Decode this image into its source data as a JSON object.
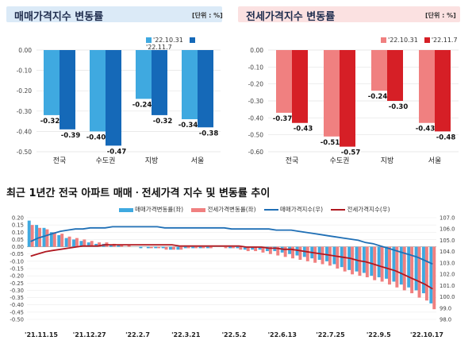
{
  "panels": [
    {
      "title": "매매가격지수 변동률",
      "unit": "[단위 : %]",
      "legend": [
        "'22.10.31",
        "'22.11.7"
      ],
      "colors": [
        "#3fa9e0",
        "#1569b8"
      ],
      "title_bg": "#dbeaf7"
    },
    {
      "title": "전세가격지수 변동률",
      "unit": "[단위 : %]",
      "legend": [
        "'22.10.31",
        "'22.11.7"
      ],
      "colors": [
        "#f08080",
        "#d61f26"
      ],
      "title_bg": "#fbe1e1"
    }
  ],
  "bottom": {
    "title": "최근 1년간 전국 아파트 매매ㆍ전세가격 지수 및 변동률 추이",
    "legend": [
      "매매가격변동률(좌)",
      "전세가격변동률(좌)",
      "매매가격지수(우)",
      "전세가격지수(우)"
    ],
    "colors": [
      "#3fa9e0",
      "#f08080",
      "#1f6fb5",
      "#b01820"
    ]
  },
  "chart_data": [
    {
      "type": "bar",
      "title": "매매가격지수 변동률",
      "categories": [
        "전국",
        "수도권",
        "지방",
        "서울"
      ],
      "series": [
        {
          "name": "'22.10.31",
          "values": [
            -0.32,
            -0.4,
            -0.24,
            -0.34
          ]
        },
        {
          "name": "'22.11.7",
          "values": [
            -0.39,
            -0.47,
            -0.32,
            -0.38
          ]
        }
      ],
      "ylim": [
        -0.5,
        0.0
      ],
      "yticks": [
        "0.00",
        "-0.10",
        "-0.20",
        "-0.30",
        "-0.40",
        "-0.50"
      ],
      "labels": [
        [
          "-0.32",
          "-0.40",
          "-0.24",
          "-0.34"
        ],
        [
          "-0.39",
          "-0.47",
          "-0.32",
          "-0.38"
        ]
      ]
    },
    {
      "type": "bar",
      "title": "전세가격지수 변동률",
      "categories": [
        "전국",
        "수도권",
        "지방",
        "서울"
      ],
      "series": [
        {
          "name": "'22.10.31",
          "values": [
            -0.37,
            -0.51,
            -0.24,
            -0.43
          ]
        },
        {
          "name": "'22.11.7",
          "values": [
            -0.43,
            -0.57,
            -0.3,
            -0.48
          ]
        }
      ],
      "ylim": [
        -0.6,
        0.0
      ],
      "yticks": [
        "0.00",
        "-0.10",
        "-0.20",
        "-0.30",
        "-0.40",
        "-0.50",
        "-0.60"
      ],
      "labels": [
        [
          "-0.37",
          "-0.51",
          "-0.24",
          "-0.43"
        ],
        [
          "-0.43",
          "-0.57",
          "-0.30",
          "-0.48"
        ]
      ]
    },
    {
      "type": "bar+line",
      "title": "최근 1년간 전국 아파트 매매ㆍ전세가격 지수 및 변동률 추이",
      "x_ticks": [
        "'21.11.15",
        "'21.12.27",
        "'22.2.7",
        "'22.3.21",
        "'22.5.2",
        "'22.6.13",
        "'22.7.25",
        "'22.9.5",
        "'22.10.17"
      ],
      "ylim_left": [
        -0.5,
        0.2
      ],
      "yticks_left": [
        "0.20",
        "0.15",
        "0.10",
        "0.05",
        "0.00",
        "-0.05",
        "-0.10",
        "-0.15",
        "-0.20",
        "-0.25",
        "-0.30",
        "-0.35",
        "-0.40",
        "-0.45",
        "-0.50"
      ],
      "ylim_right": [
        98.0,
        107.0
      ],
      "yticks_right": [
        "107.0",
        "106.0",
        "105.0",
        "104.0",
        "103.0",
        "102.0",
        "101.0",
        "100.0",
        "99.0",
        "98.0"
      ],
      "series": [
        {
          "name": "매매가격변동률(좌)",
          "axis": "left",
          "kind": "bar",
          "values": [
            0.18,
            0.15,
            0.13,
            0.1,
            0.08,
            0.06,
            0.05,
            0.04,
            0.03,
            0.02,
            0.02,
            0.01,
            0.01,
            0.0,
            0.0,
            -0.01,
            -0.01,
            -0.01,
            -0.01,
            -0.02,
            -0.02,
            -0.01,
            -0.01,
            -0.01,
            -0.01,
            0.0,
            0.0,
            -0.01,
            -0.01,
            -0.02,
            -0.02,
            -0.02,
            -0.03,
            -0.03,
            -0.04,
            -0.05,
            -0.06,
            -0.07,
            -0.08,
            -0.09,
            -0.1,
            -0.12,
            -0.14,
            -0.16,
            -0.17,
            -0.18,
            -0.2,
            -0.21,
            -0.22,
            -0.24,
            -0.26,
            -0.28,
            -0.3,
            -0.32,
            -0.39
          ]
        },
        {
          "name": "전세가격변동률(좌)",
          "axis": "left",
          "kind": "bar",
          "values": [
            0.15,
            0.13,
            0.12,
            0.1,
            0.09,
            0.07,
            0.06,
            0.05,
            0.04,
            0.03,
            0.03,
            0.02,
            0.01,
            0.01,
            0.0,
            0.0,
            -0.01,
            -0.01,
            -0.02,
            -0.02,
            -0.02,
            -0.01,
            -0.01,
            -0.01,
            -0.01,
            0.0,
            -0.01,
            -0.01,
            -0.02,
            -0.03,
            -0.03,
            -0.04,
            -0.05,
            -0.06,
            -0.07,
            -0.08,
            -0.09,
            -0.1,
            -0.11,
            -0.12,
            -0.13,
            -0.15,
            -0.17,
            -0.19,
            -0.2,
            -0.21,
            -0.23,
            -0.24,
            -0.26,
            -0.28,
            -0.3,
            -0.32,
            -0.35,
            -0.37,
            -0.43
          ]
        },
        {
          "name": "매매가격지수(우)",
          "axis": "right",
          "kind": "line",
          "values": [
            104.9,
            105.2,
            105.4,
            105.6,
            105.8,
            105.9,
            106.0,
            106.0,
            106.1,
            106.1,
            106.1,
            106.2,
            106.2,
            106.2,
            106.2,
            106.2,
            106.2,
            106.2,
            106.1,
            106.1,
            106.1,
            106.1,
            106.1,
            106.1,
            106.1,
            106.1,
            106.1,
            106.0,
            106.0,
            106.0,
            106.0,
            106.0,
            106.0,
            105.9,
            105.9,
            105.9,
            105.8,
            105.7,
            105.6,
            105.5,
            105.4,
            105.3,
            105.2,
            105.1,
            105.0,
            104.8,
            104.7,
            104.5,
            104.3,
            104.1,
            103.9,
            103.7,
            103.5,
            103.2,
            102.9
          ]
        },
        {
          "name": "전세가격지수(우)",
          "axis": "right",
          "kind": "line",
          "values": [
            103.6,
            103.8,
            104.0,
            104.1,
            104.2,
            104.3,
            104.4,
            104.5,
            104.5,
            104.5,
            104.6,
            104.6,
            104.6,
            104.6,
            104.6,
            104.6,
            104.6,
            104.6,
            104.6,
            104.6,
            104.5,
            104.5,
            104.5,
            104.5,
            104.5,
            104.5,
            104.5,
            104.5,
            104.5,
            104.4,
            104.4,
            104.4,
            104.3,
            104.3,
            104.2,
            104.2,
            104.1,
            104.0,
            103.9,
            103.8,
            103.7,
            103.6,
            103.5,
            103.4,
            103.2,
            103.1,
            102.9,
            102.7,
            102.5,
            102.3,
            102.0,
            101.7,
            101.4,
            101.1,
            100.7
          ]
        }
      ]
    }
  ]
}
